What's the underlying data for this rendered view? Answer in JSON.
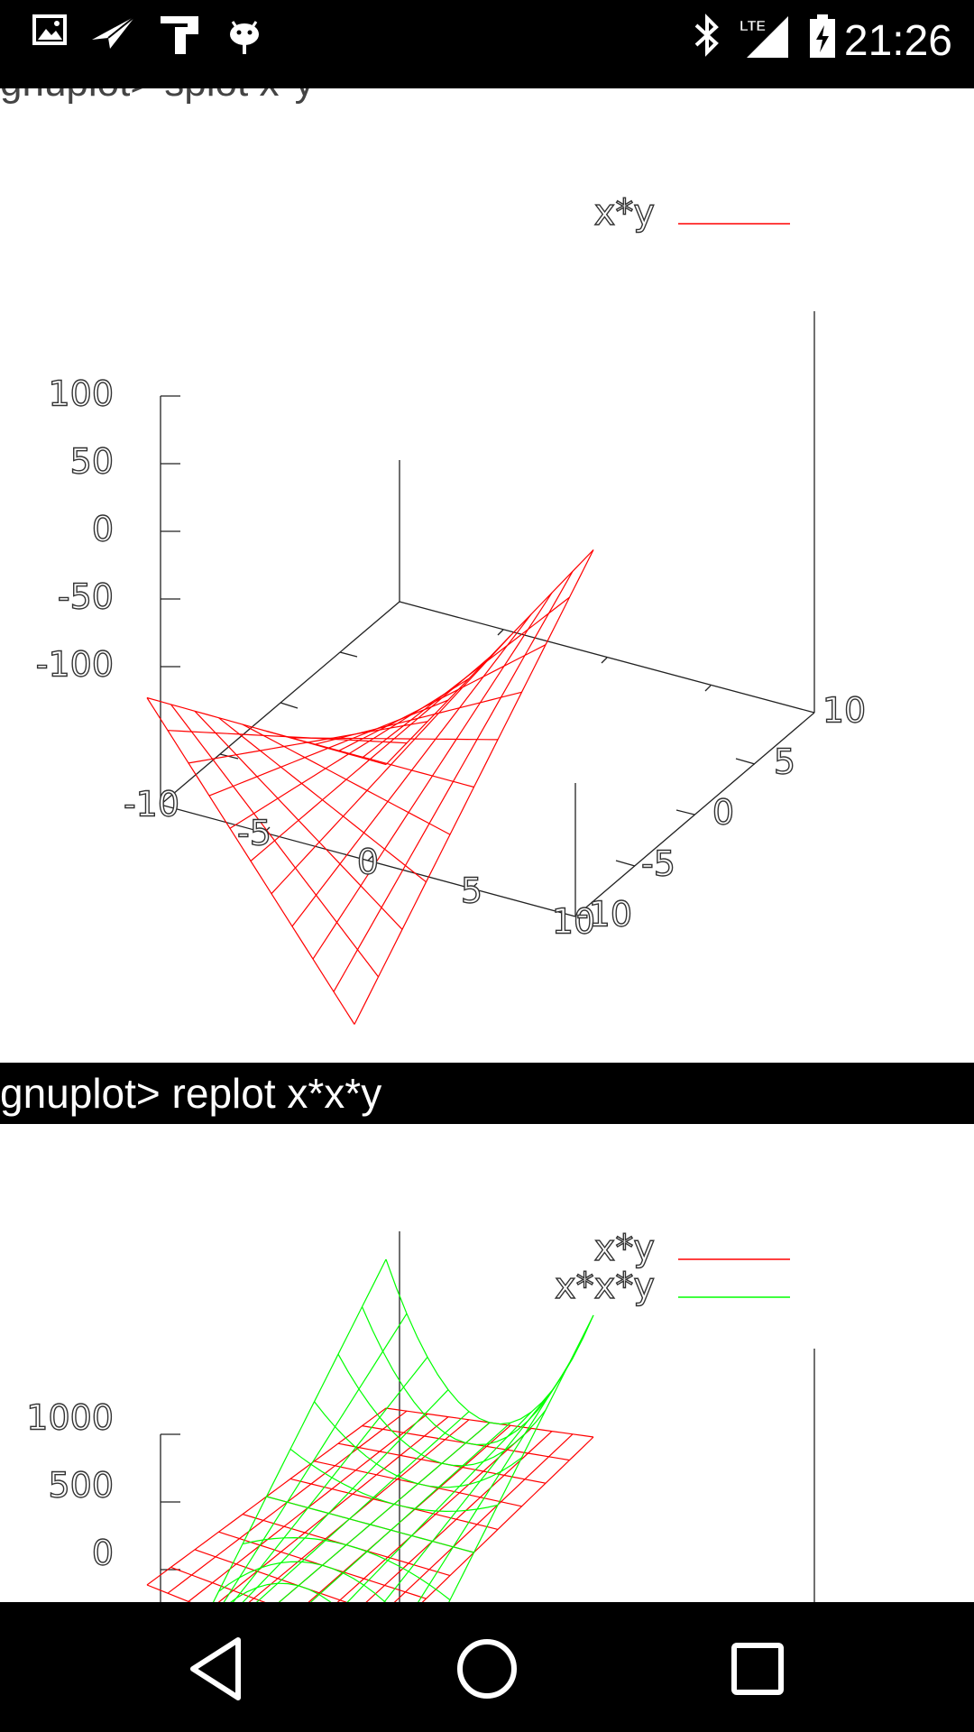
{
  "status_bar": {
    "time": "21:26",
    "left_icons": [
      "image-icon",
      "send-icon",
      "paste-icon",
      "android-debug-icon"
    ],
    "right_icons": [
      "bluetooth-icon",
      "lte-signal-icon",
      "battery-charging-icon"
    ],
    "network_label": "LTE"
  },
  "terminal": {
    "previous_command_cutoff": "gnuplot> splot x*y",
    "command": "gnuplot> replot x*x*y"
  },
  "plot1": {
    "legend": [
      {
        "label": "x*y",
        "color": "#ff0000"
      }
    ],
    "z_ticks": [
      "100",
      "50",
      "0",
      "-50",
      "-100"
    ],
    "x_ticks": [
      "-10",
      "-5",
      "0",
      "5",
      "10"
    ],
    "y_ticks": [
      "-10",
      "-5",
      "0",
      "5",
      "10"
    ]
  },
  "plot2": {
    "legend": [
      {
        "label": "x*y",
        "color": "#ff0000"
      },
      {
        "label": "x*x*y",
        "color": "#00ff00"
      }
    ],
    "z_ticks": [
      "1000",
      "500",
      "0"
    ]
  },
  "chart_data": [
    {
      "type": "surface",
      "title": "",
      "series": [
        {
          "name": "x*y",
          "function": "x*y",
          "color": "#ff0000"
        }
      ],
      "x_range": [
        -10,
        10
      ],
      "y_range": [
        -10,
        10
      ],
      "z_range": [
        -100,
        100
      ]
    },
    {
      "type": "surface",
      "title": "",
      "series": [
        {
          "name": "x*y",
          "function": "x*y",
          "color": "#ff0000"
        },
        {
          "name": "x*x*y",
          "function": "x*x*y",
          "color": "#00ff00"
        }
      ],
      "x_range": [
        -10,
        10
      ],
      "y_range": [
        -10,
        10
      ],
      "z_range": [
        -1000,
        1000
      ]
    }
  ],
  "nav_bar": {
    "buttons": [
      "back-icon",
      "home-icon",
      "recents-icon"
    ]
  }
}
